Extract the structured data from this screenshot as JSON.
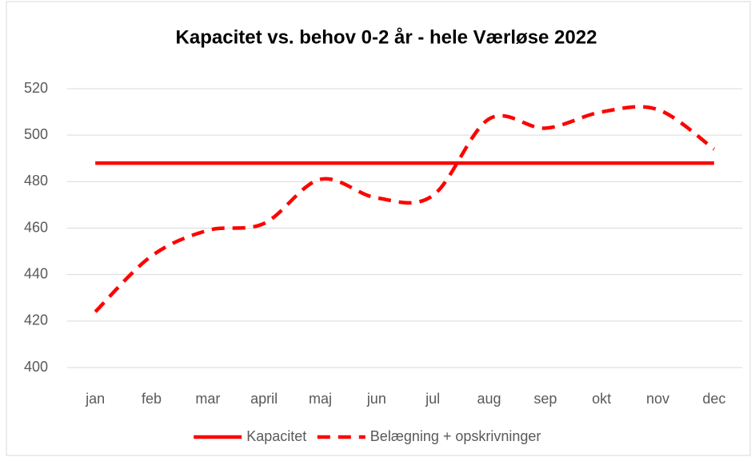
{
  "chart_data": {
    "type": "line",
    "title": "Kapacitet vs. behov 0-2 år - hele Værløse 2022",
    "categories": [
      "jan",
      "feb",
      "mar",
      "april",
      "maj",
      "jun",
      "jul",
      "aug",
      "sep",
      "okt",
      "nov",
      "dec"
    ],
    "series": [
      {
        "name": "Kapacitet",
        "color": "#ff0000",
        "dash": false,
        "values": [
          488,
          488,
          488,
          488,
          488,
          488,
          488,
          488,
          488,
          488,
          488,
          488
        ]
      },
      {
        "name": "Belægning + opskrivninger",
        "color": "#ff0000",
        "dash": true,
        "values": [
          424,
          448,
          459,
          462,
          481,
          473,
          474,
          507,
          503,
          510,
          511,
          494
        ]
      }
    ],
    "ylim": [
      400,
      520
    ],
    "yticks": [
      400,
      420,
      440,
      460,
      480,
      500,
      520
    ],
    "grid": true,
    "smooth": true,
    "legend": "bottom"
  }
}
